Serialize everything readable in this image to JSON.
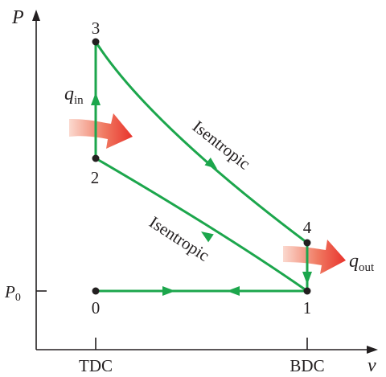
{
  "axes": {
    "y_label": "P",
    "x_label": "v",
    "y_tick": {
      "main": "P",
      "sub": "0"
    },
    "x_ticks": [
      "TDC",
      "BDC"
    ]
  },
  "states": [
    "0",
    "1",
    "2",
    "3",
    "4"
  ],
  "process_labels": {
    "compression": "Isentropic",
    "expansion": "Isentropic"
  },
  "heat": {
    "in": {
      "main": "q",
      "sub": "in"
    },
    "out": {
      "main": "q",
      "sub": "out"
    }
  },
  "colors": {
    "cycle": "#1ca64c",
    "axis": "#231f20",
    "heat_arrow": "#e8413c"
  }
}
